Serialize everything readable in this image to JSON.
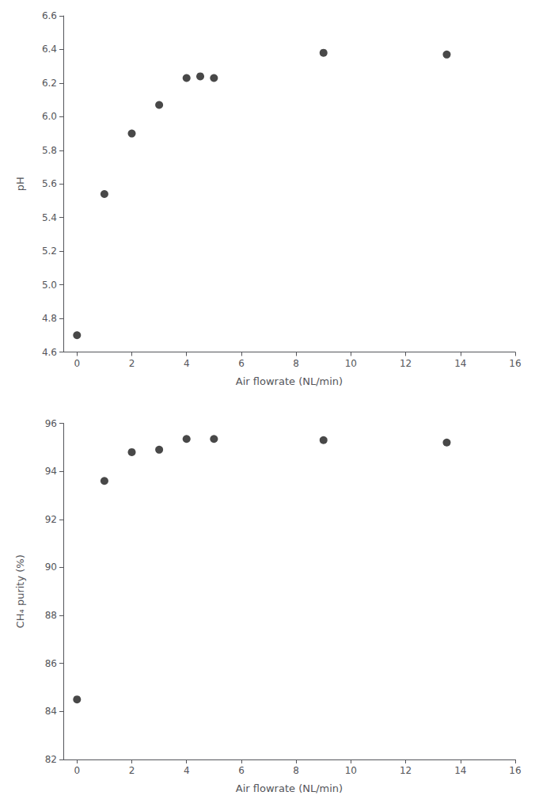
{
  "chart_data": [
    {
      "type": "scatter",
      "x": [
        0,
        1,
        2,
        3,
        4,
        4.5,
        5,
        9,
        13.5
      ],
      "values": [
        4.7,
        5.54,
        5.9,
        6.07,
        6.23,
        6.24,
        6.23,
        6.38,
        6.37
      ],
      "xlabel": "Air flowrate (NL/min)",
      "ylabel": "pH",
      "xlim": [
        -0.5,
        16
      ],
      "ylim": [
        4.6,
        6.6
      ],
      "xticks": [
        0,
        2,
        4,
        6,
        8,
        10,
        12,
        14,
        16
      ],
      "yticks": [
        4.6,
        4.8,
        {
          "value": 5,
          "label": "5.0"
        },
        5.2,
        5.4,
        5.6,
        5.8,
        {
          "value": 6,
          "label": "6.0"
        },
        6.2,
        6.4,
        6.6
      ],
      "color": "#1a1a1a",
      "marker": "circle",
      "grid": false
    },
    {
      "type": "scatter",
      "x": [
        0,
        1,
        2,
        3,
        4,
        5,
        9,
        13.5
      ],
      "values": [
        84.5,
        93.6,
        94.8,
        94.9,
        95.35,
        95.35,
        95.3,
        95.2
      ],
      "xlabel": "Air flowrate (NL/min)",
      "ylabel": "CH₄ purity (%)",
      "xlim": [
        -0.5,
        16
      ],
      "ylim": [
        82,
        96
      ],
      "xticks": [
        0,
        2,
        4,
        6,
        8,
        10,
        12,
        14,
        16
      ],
      "yticks": [
        82,
        84,
        86,
        88,
        90,
        92,
        94,
        96
      ],
      "color": "#1a1a1a",
      "marker": "circle",
      "grid": false
    }
  ]
}
